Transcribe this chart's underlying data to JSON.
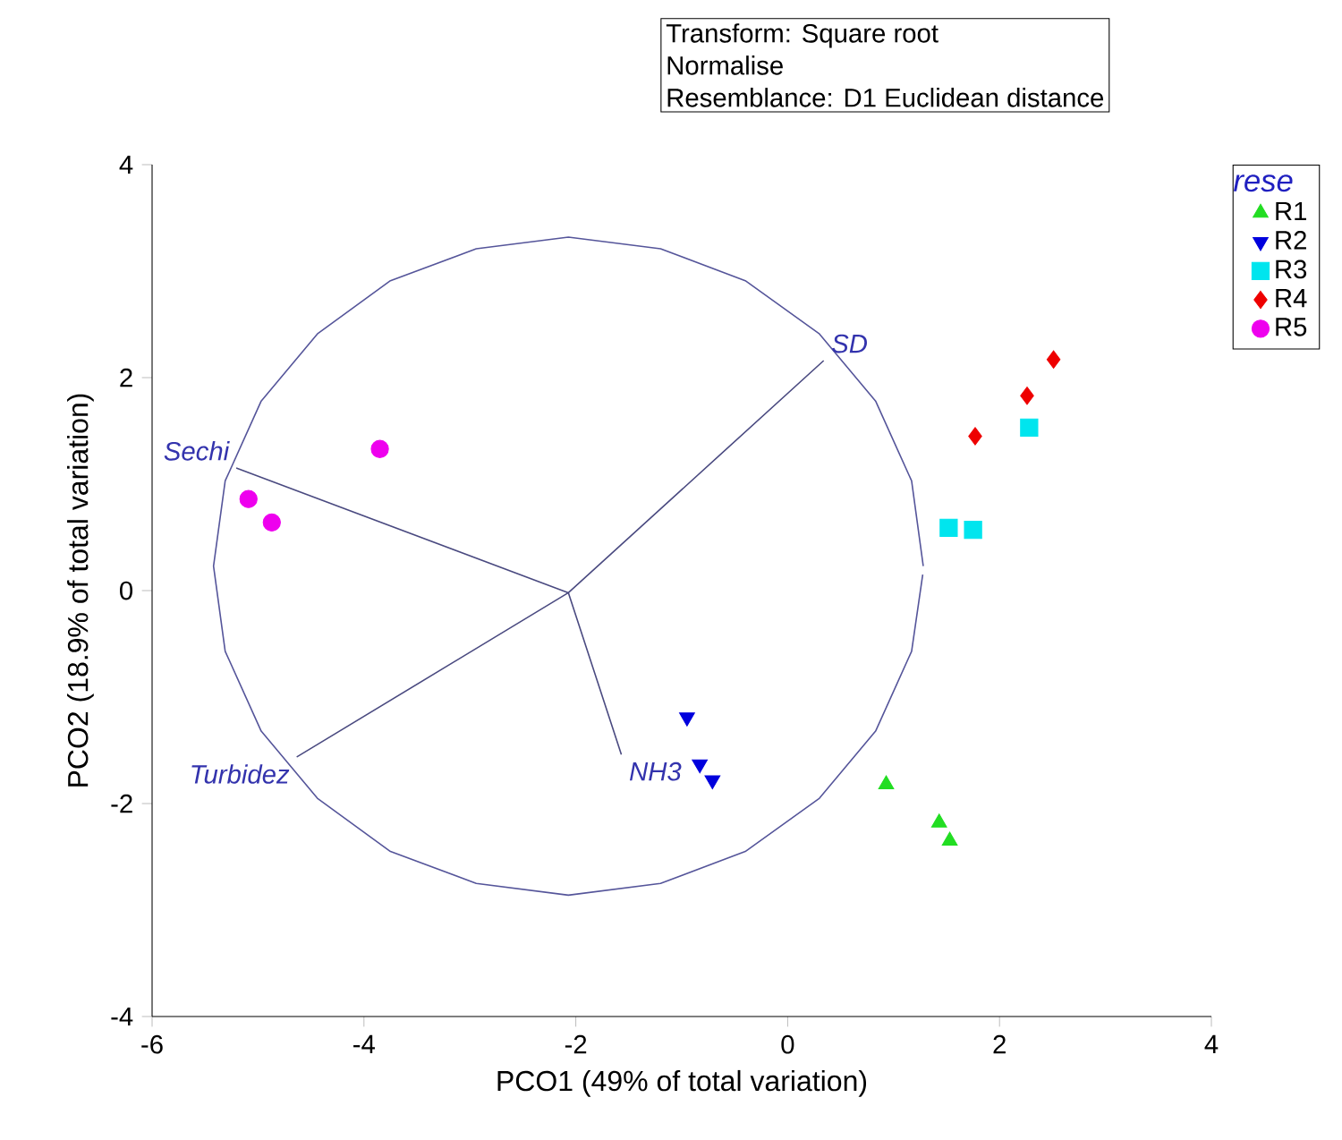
{
  "chart_data": {
    "type": "scatter",
    "xlabel": "PCO1 (49% of total variation)",
    "ylabel": "PCO2 (18.9% of total variation)",
    "legend_title": "rese",
    "legend": "top right",
    "grid": false,
    "xlim": [
      -6,
      4
    ],
    "ylim": [
      -4,
      4
    ],
    "xticks": [
      -6,
      -4,
      -2,
      0,
      2,
      4
    ],
    "yticks": [
      -4,
      -2,
      0,
      2,
      4
    ],
    "annotations": [
      "Transform: Square root",
      "Normalise",
      "Resemblance: D1 Euclidean distance",
      {
        "text": "SD",
        "x": 0.34,
        "y": 2.16
      },
      {
        "text": "Sechi",
        "x": -5.2,
        "y": 1.15
      },
      {
        "text": "Turbidez",
        "x": -4.63,
        "y": -1.56
      },
      {
        "text": "NH3",
        "x": -1.57,
        "y": -1.54
      }
    ],
    "series": [
      {
        "name": "R1",
        "color": "#22dd22",
        "marker": "triangle",
        "x": [
          0.93,
          1.43,
          1.53
        ],
        "values": [
          -1.82,
          -2.18,
          -2.35
        ]
      },
      {
        "name": "R2",
        "color": "#0000dd",
        "marker": "triangle-down",
        "x": [
          -0.95,
          -0.83,
          -0.71
        ],
        "values": [
          -1.19,
          -1.63,
          -1.78
        ]
      },
      {
        "name": "R3",
        "color": "#00e5ee",
        "marker": "square",
        "x": [
          1.52,
          1.75,
          2.28
        ],
        "values": [
          0.59,
          0.57,
          1.53
        ]
      },
      {
        "name": "R4",
        "color": "#ee0000",
        "marker": "diamond",
        "x": [
          1.77,
          2.26,
          2.51
        ],
        "values": [
          1.45,
          1.83,
          2.17
        ]
      },
      {
        "name": "R5",
        "color": "#ee00ee",
        "marker": "circle",
        "x": [
          -5.09,
          -4.87,
          -3.85
        ],
        "values": [
          0.86,
          0.64,
          1.33
        ]
      },
      {
        "type": "line",
        "color": "#4a4a80",
        "marker": "none",
        "x": [
          0.34,
          -2.07,
          -5.2,
          -2.07,
          -4.63,
          -2.07,
          -1.57
        ],
        "values": [
          2.16,
          -0.02,
          1.15,
          -0.02,
          -1.56,
          -0.02,
          -1.54
        ]
      },
      {
        "type": "line",
        "color": "#55559a",
        "marker": "none",
        "x": [
          1.28,
          1.17,
          0.83,
          0.3,
          -0.4,
          -1.2,
          -2.07,
          -2.94,
          -3.75,
          -4.44,
          -4.97,
          -5.31,
          -5.42,
          -5.31,
          -4.97,
          -4.44,
          -3.75,
          -2.94,
          -2.07,
          -1.2,
          -0.4,
          0.3,
          0.83,
          1.17,
          1.275
        ],
        "values": [
          0.23,
          1.03,
          1.78,
          2.41,
          2.91,
          3.21,
          3.32,
          3.21,
          2.91,
          2.41,
          1.78,
          1.03,
          0.23,
          -0.57,
          -1.32,
          -1.95,
          -2.45,
          -2.75,
          -2.86,
          -2.75,
          -2.45,
          -1.95,
          -1.32,
          -0.57,
          0.15
        ]
      }
    ]
  }
}
